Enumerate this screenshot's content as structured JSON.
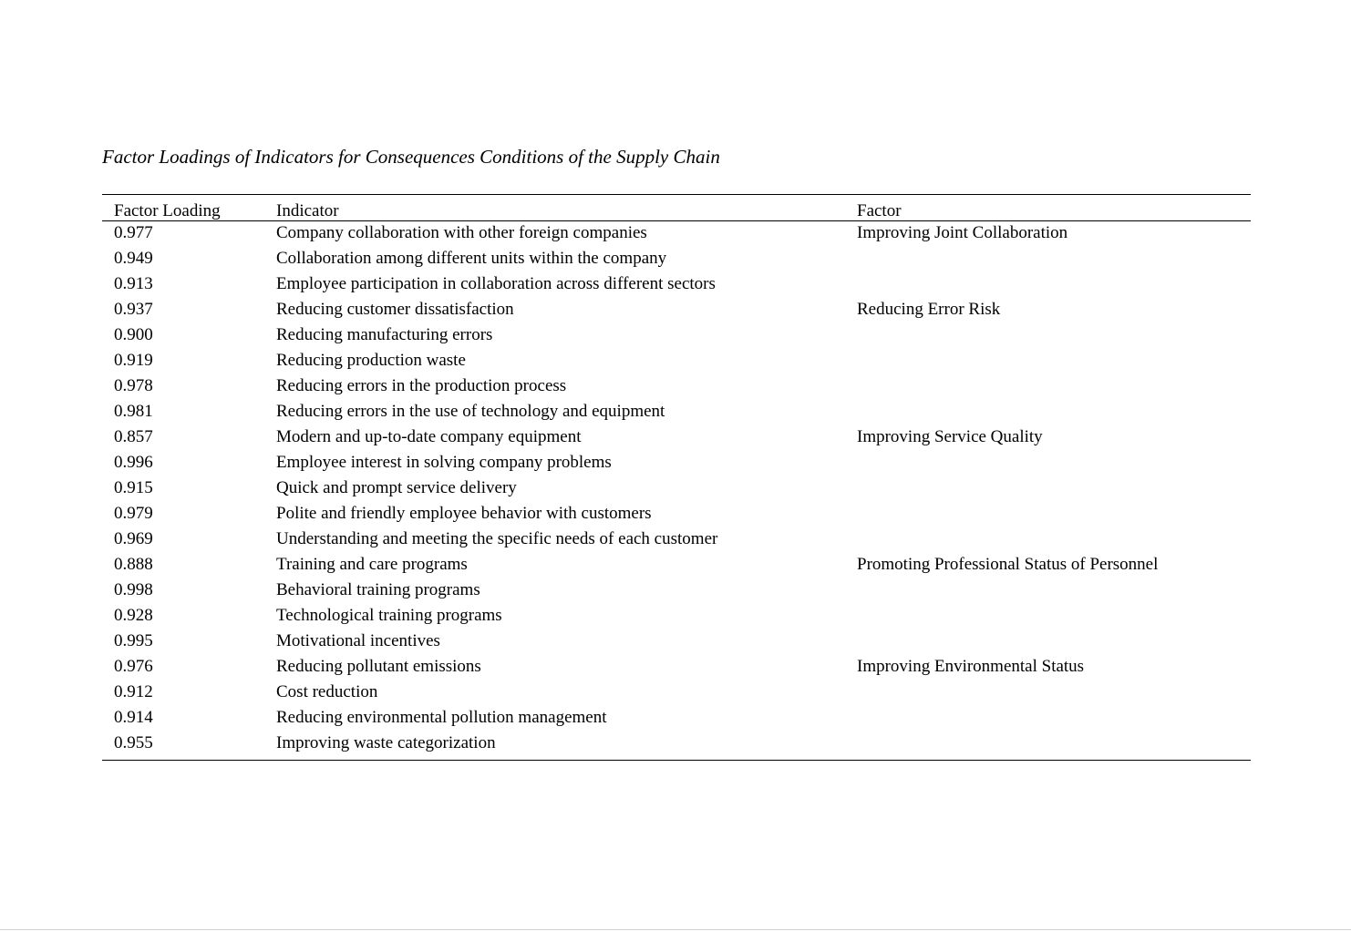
{
  "title": "Factor Loadings of Indicators for Consequences Conditions of the Supply Chain",
  "table": {
    "headers": [
      "Factor Loading",
      "Indicator",
      "Factor"
    ],
    "rows": [
      {
        "loading": "0.977",
        "indicator": "Company collaboration with other foreign companies",
        "factor": "Improving Joint Collaboration"
      },
      {
        "loading": "0.949",
        "indicator": "Collaboration among different units within the company",
        "factor": ""
      },
      {
        "loading": "0.913",
        "indicator": "Employee participation in collaboration across different sectors",
        "factor": ""
      },
      {
        "loading": "0.937",
        "indicator": "Reducing customer dissatisfaction",
        "factor": "Reducing Error Risk"
      },
      {
        "loading": "0.900",
        "indicator": "Reducing manufacturing errors",
        "factor": ""
      },
      {
        "loading": "0.919",
        "indicator": "Reducing production waste",
        "factor": ""
      },
      {
        "loading": "0.978",
        "indicator": "Reducing errors in the production process",
        "factor": ""
      },
      {
        "loading": "0.981",
        "indicator": "Reducing errors in the use of technology and equipment",
        "factor": ""
      },
      {
        "loading": "0.857",
        "indicator": "Modern and up-to-date company equipment",
        "factor": "Improving Service Quality"
      },
      {
        "loading": "0.996",
        "indicator": "Employee interest in solving company problems",
        "factor": ""
      },
      {
        "loading": "0.915",
        "indicator": "Quick and prompt service delivery",
        "factor": ""
      },
      {
        "loading": "0.979",
        "indicator": "Polite and friendly employee behavior with customers",
        "factor": ""
      },
      {
        "loading": "0.969",
        "indicator": "Understanding and meeting the specific needs of each customer",
        "factor": ""
      },
      {
        "loading": "0.888",
        "indicator": "Training and care programs",
        "factor": "Promoting Professional Status of Personnel"
      },
      {
        "loading": "0.998",
        "indicator": "Behavioral training programs",
        "factor": ""
      },
      {
        "loading": "0.928",
        "indicator": "Technological training programs",
        "factor": ""
      },
      {
        "loading": "0.995",
        "indicator": "Motivational incentives",
        "factor": ""
      },
      {
        "loading": "0.976",
        "indicator": "Reducing pollutant emissions",
        "factor": "Improving Environmental Status"
      },
      {
        "loading": "0.912",
        "indicator": "Cost reduction",
        "factor": ""
      },
      {
        "loading": "0.914",
        "indicator": "Reducing environmental pollution management",
        "factor": ""
      },
      {
        "loading": "0.955",
        "indicator": "Improving waste categorization",
        "factor": ""
      }
    ]
  }
}
